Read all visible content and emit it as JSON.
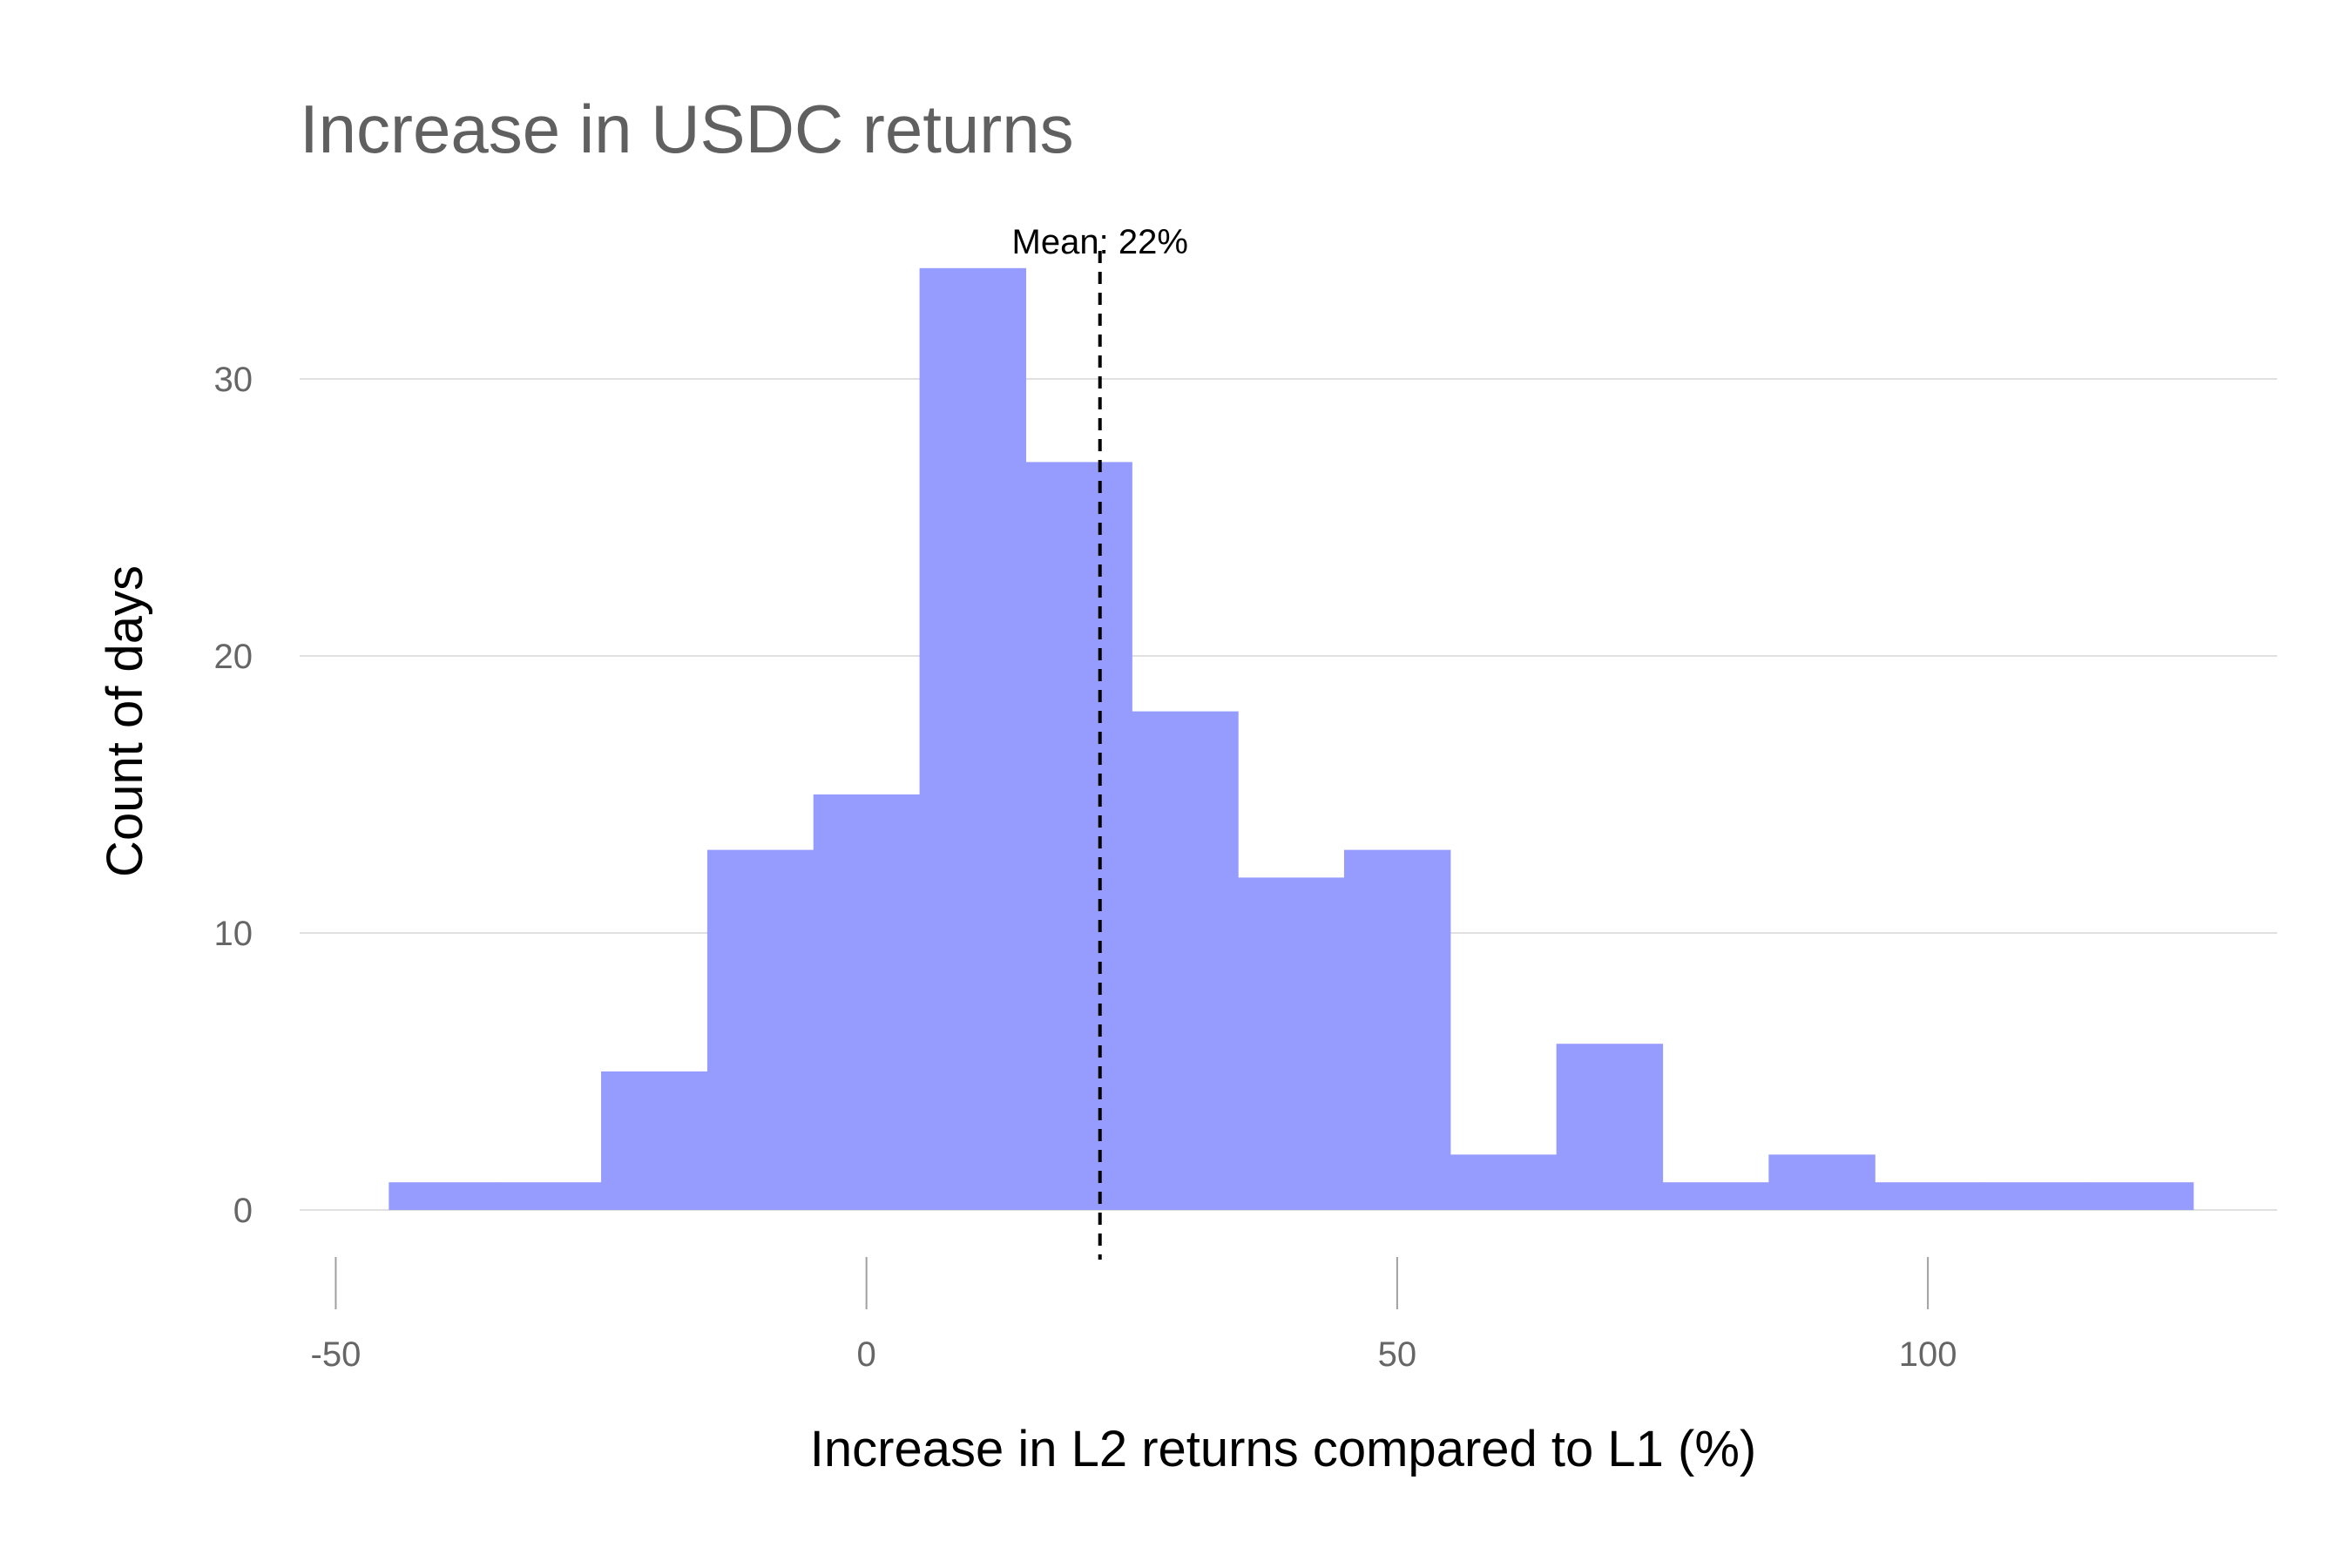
{
  "chart_data": {
    "type": "bar",
    "title": "Increase in USDC returns",
    "xlabel": "Increase in L2 returns compared to L1 (%)",
    "ylabel": "Count of days",
    "bin_width": 10,
    "bins": [
      {
        "x0": -45,
        "x1": -35,
        "count": 1
      },
      {
        "x0": -35,
        "x1": -25,
        "count": 1
      },
      {
        "x0": -25,
        "x1": -15,
        "count": 5
      },
      {
        "x0": -15,
        "x1": -5,
        "count": 13
      },
      {
        "x0": -5,
        "x1": 5,
        "count": 15
      },
      {
        "x0": 5,
        "x1": 15,
        "count": 34
      },
      {
        "x0": 15,
        "x1": 25,
        "count": 27
      },
      {
        "x0": 25,
        "x1": 35,
        "count": 18
      },
      {
        "x0": 35,
        "x1": 45,
        "count": 12
      },
      {
        "x0": 45,
        "x1": 55,
        "count": 13
      },
      {
        "x0": 55,
        "x1": 65,
        "count": 2
      },
      {
        "x0": 65,
        "x1": 75,
        "count": 6
      },
      {
        "x0": 75,
        "x1": 85,
        "count": 1
      },
      {
        "x0": 85,
        "x1": 95,
        "count": 2
      },
      {
        "x0": 95,
        "x1": 105,
        "count": 1
      },
      {
        "x0": 105,
        "x1": 115,
        "count": 1
      },
      {
        "x0": 115,
        "x1": 125,
        "count": 1
      }
    ],
    "xlim": [
      -53.4,
      132.9
    ],
    "ylim": [
      0,
      35
    ],
    "x_ticks": [
      -50,
      0,
      50,
      100
    ],
    "x_tick_labels": [
      "-50",
      "0",
      "50",
      "100"
    ],
    "y_ticks": [
      0,
      10,
      20,
      30
    ],
    "y_tick_labels": [
      "0",
      "10",
      "20",
      "30"
    ],
    "grid": "horizontal",
    "mean": {
      "value": 22,
      "label": "Mean: 22%",
      "style": "dashed"
    },
    "colors": {
      "bar": "#969cfd",
      "grid": "#e0e0e0",
      "title": "#606060",
      "tick_label": "#666666",
      "axis_label": "#000000",
      "mean_line": "#000000",
      "x_tick": "#a0a0a0"
    }
  }
}
